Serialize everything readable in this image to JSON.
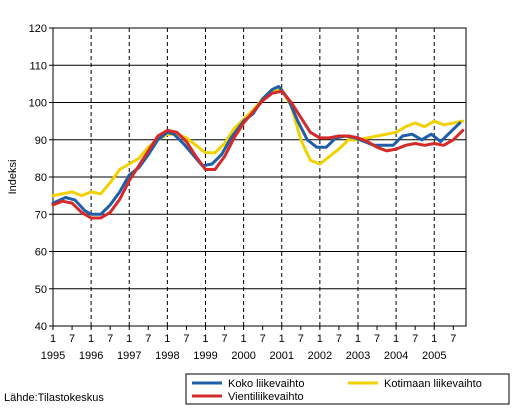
{
  "chart_data": {
    "type": "line",
    "title": "",
    "ylabel": "Indeksi",
    "xlabel": "",
    "ylim": [
      40,
      120
    ],
    "yticks": [
      40,
      50,
      60,
      70,
      80,
      90,
      100,
      110,
      120
    ],
    "x_start": 1995,
    "months": 130,
    "month_labels": [
      "1",
      "7"
    ],
    "year_labels": [
      "1995",
      "1996",
      "1997",
      "1998",
      "1999",
      "2000",
      "2001",
      "2002",
      "2003",
      "2004",
      "2005"
    ],
    "grid": "dashed-vertical-at-january",
    "legend_position": "bottom",
    "source": "Lähde:Tilastokeskus",
    "series": [
      {
        "name": "Koko liikevaihto",
        "color": "#1f5fa8",
        "points": [
          [
            1995.0,
            73.0
          ],
          [
            1995.33,
            74.5
          ],
          [
            1995.58,
            73.8
          ],
          [
            1995.83,
            71.0
          ],
          [
            1996.0,
            70.0
          ],
          [
            1996.25,
            70.0
          ],
          [
            1996.5,
            72.5
          ],
          [
            1996.75,
            76.0
          ],
          [
            1997.0,
            80.5
          ],
          [
            1997.25,
            82.5
          ],
          [
            1997.5,
            86.0
          ],
          [
            1997.75,
            90.0
          ],
          [
            1998.0,
            92.0
          ],
          [
            1998.17,
            91.5
          ],
          [
            1998.42,
            89.0
          ],
          [
            1998.67,
            86.0
          ],
          [
            1998.92,
            83.0
          ],
          [
            1999.17,
            83.5
          ],
          [
            1999.42,
            86.0
          ],
          [
            1999.67,
            90.5
          ],
          [
            2000.0,
            95.0
          ],
          [
            2000.25,
            97.0
          ],
          [
            2000.5,
            101.0
          ],
          [
            2000.75,
            103.5
          ],
          [
            2000.92,
            104.3
          ],
          [
            2001.17,
            101.0
          ],
          [
            2001.42,
            95.0
          ],
          [
            2001.67,
            90.0
          ],
          [
            2001.92,
            88.0
          ],
          [
            2002.17,
            88.0
          ],
          [
            2002.42,
            90.5
          ],
          [
            2002.67,
            91.0
          ],
          [
            2002.92,
            90.5
          ],
          [
            2003.17,
            89.5
          ],
          [
            2003.42,
            88.5
          ],
          [
            2003.67,
            88.5
          ],
          [
            2003.92,
            88.5
          ],
          [
            2004.17,
            91.0
          ],
          [
            2004.42,
            91.5
          ],
          [
            2004.67,
            90.0
          ],
          [
            2004.92,
            91.5
          ],
          [
            2005.17,
            89.5
          ],
          [
            2005.42,
            92.0
          ],
          [
            2005.67,
            94.5
          ]
        ]
      },
      {
        "name": "Kotimaan liikevaihto",
        "color": "#f2d100",
        "points": [
          [
            1995.0,
            75.0
          ],
          [
            1995.25,
            75.5
          ],
          [
            1995.5,
            76.0
          ],
          [
            1995.75,
            75.0
          ],
          [
            1996.0,
            76.0
          ],
          [
            1996.25,
            75.5
          ],
          [
            1996.5,
            78.5
          ],
          [
            1996.75,
            82.0
          ],
          [
            1997.0,
            83.5
          ],
          [
            1997.25,
            85.0
          ],
          [
            1997.5,
            88.0
          ],
          [
            1997.75,
            90.0
          ],
          [
            1998.0,
            91.5
          ],
          [
            1998.25,
            91.5
          ],
          [
            1998.5,
            90.5
          ],
          [
            1998.75,
            88.5
          ],
          [
            1999.0,
            86.5
          ],
          [
            1999.25,
            86.5
          ],
          [
            1999.5,
            89.0
          ],
          [
            1999.75,
            93.0
          ],
          [
            2000.0,
            95.5
          ],
          [
            2000.25,
            98.0
          ],
          [
            2000.5,
            101.0
          ],
          [
            2000.75,
            103.0
          ],
          [
            2001.0,
            103.5
          ],
          [
            2001.25,
            99.0
          ],
          [
            2001.5,
            90.0
          ],
          [
            2001.75,
            84.5
          ],
          [
            2002.0,
            83.5
          ],
          [
            2002.25,
            85.5
          ],
          [
            2002.5,
            87.5
          ],
          [
            2002.75,
            90.0
          ],
          [
            2003.0,
            90.0
          ],
          [
            2003.25,
            90.5
          ],
          [
            2003.5,
            91.0
          ],
          [
            2003.75,
            91.5
          ],
          [
            2004.0,
            92.0
          ],
          [
            2004.25,
            93.5
          ],
          [
            2004.5,
            94.5
          ],
          [
            2004.75,
            93.5
          ],
          [
            2005.0,
            95.0
          ],
          [
            2005.25,
            94.0
          ],
          [
            2005.5,
            94.5
          ],
          [
            2005.75,
            95.0
          ]
        ]
      },
      {
        "name": "Vientiliikevaihto",
        "color": "#d42a2a",
        "points": [
          [
            1995.0,
            72.5
          ],
          [
            1995.25,
            73.5
          ],
          [
            1995.5,
            73.0
          ],
          [
            1995.75,
            70.5
          ],
          [
            1996.0,
            69.0
          ],
          [
            1996.25,
            69.0
          ],
          [
            1996.5,
            70.5
          ],
          [
            1996.75,
            74.0
          ],
          [
            1997.0,
            79.0
          ],
          [
            1997.25,
            83.0
          ],
          [
            1997.5,
            87.0
          ],
          [
            1997.75,
            91.0
          ],
          [
            1998.0,
            92.5
          ],
          [
            1998.25,
            92.0
          ],
          [
            1998.5,
            89.5
          ],
          [
            1998.75,
            85.5
          ],
          [
            1999.0,
            82.0
          ],
          [
            1999.25,
            82.0
          ],
          [
            1999.5,
            85.5
          ],
          [
            1999.75,
            90.5
          ],
          [
            2000.0,
            94.5
          ],
          [
            2000.25,
            97.5
          ],
          [
            2000.5,
            100.5
          ],
          [
            2000.75,
            102.5
          ],
          [
            2001.0,
            103.0
          ],
          [
            2001.25,
            100.0
          ],
          [
            2001.5,
            96.0
          ],
          [
            2001.75,
            92.0
          ],
          [
            2002.0,
            90.5
          ],
          [
            2002.25,
            90.5
          ],
          [
            2002.5,
            91.0
          ],
          [
            2002.75,
            91.0
          ],
          [
            2003.0,
            90.5
          ],
          [
            2003.25,
            89.5
          ],
          [
            2003.5,
            88.0
          ],
          [
            2003.75,
            87.0
          ],
          [
            2004.0,
            87.5
          ],
          [
            2004.25,
            88.5
          ],
          [
            2004.5,
            89.0
          ],
          [
            2004.75,
            88.5
          ],
          [
            2005.0,
            89.0
          ],
          [
            2005.25,
            88.5
          ],
          [
            2005.5,
            90.0
          ],
          [
            2005.75,
            92.5
          ]
        ]
      }
    ]
  }
}
